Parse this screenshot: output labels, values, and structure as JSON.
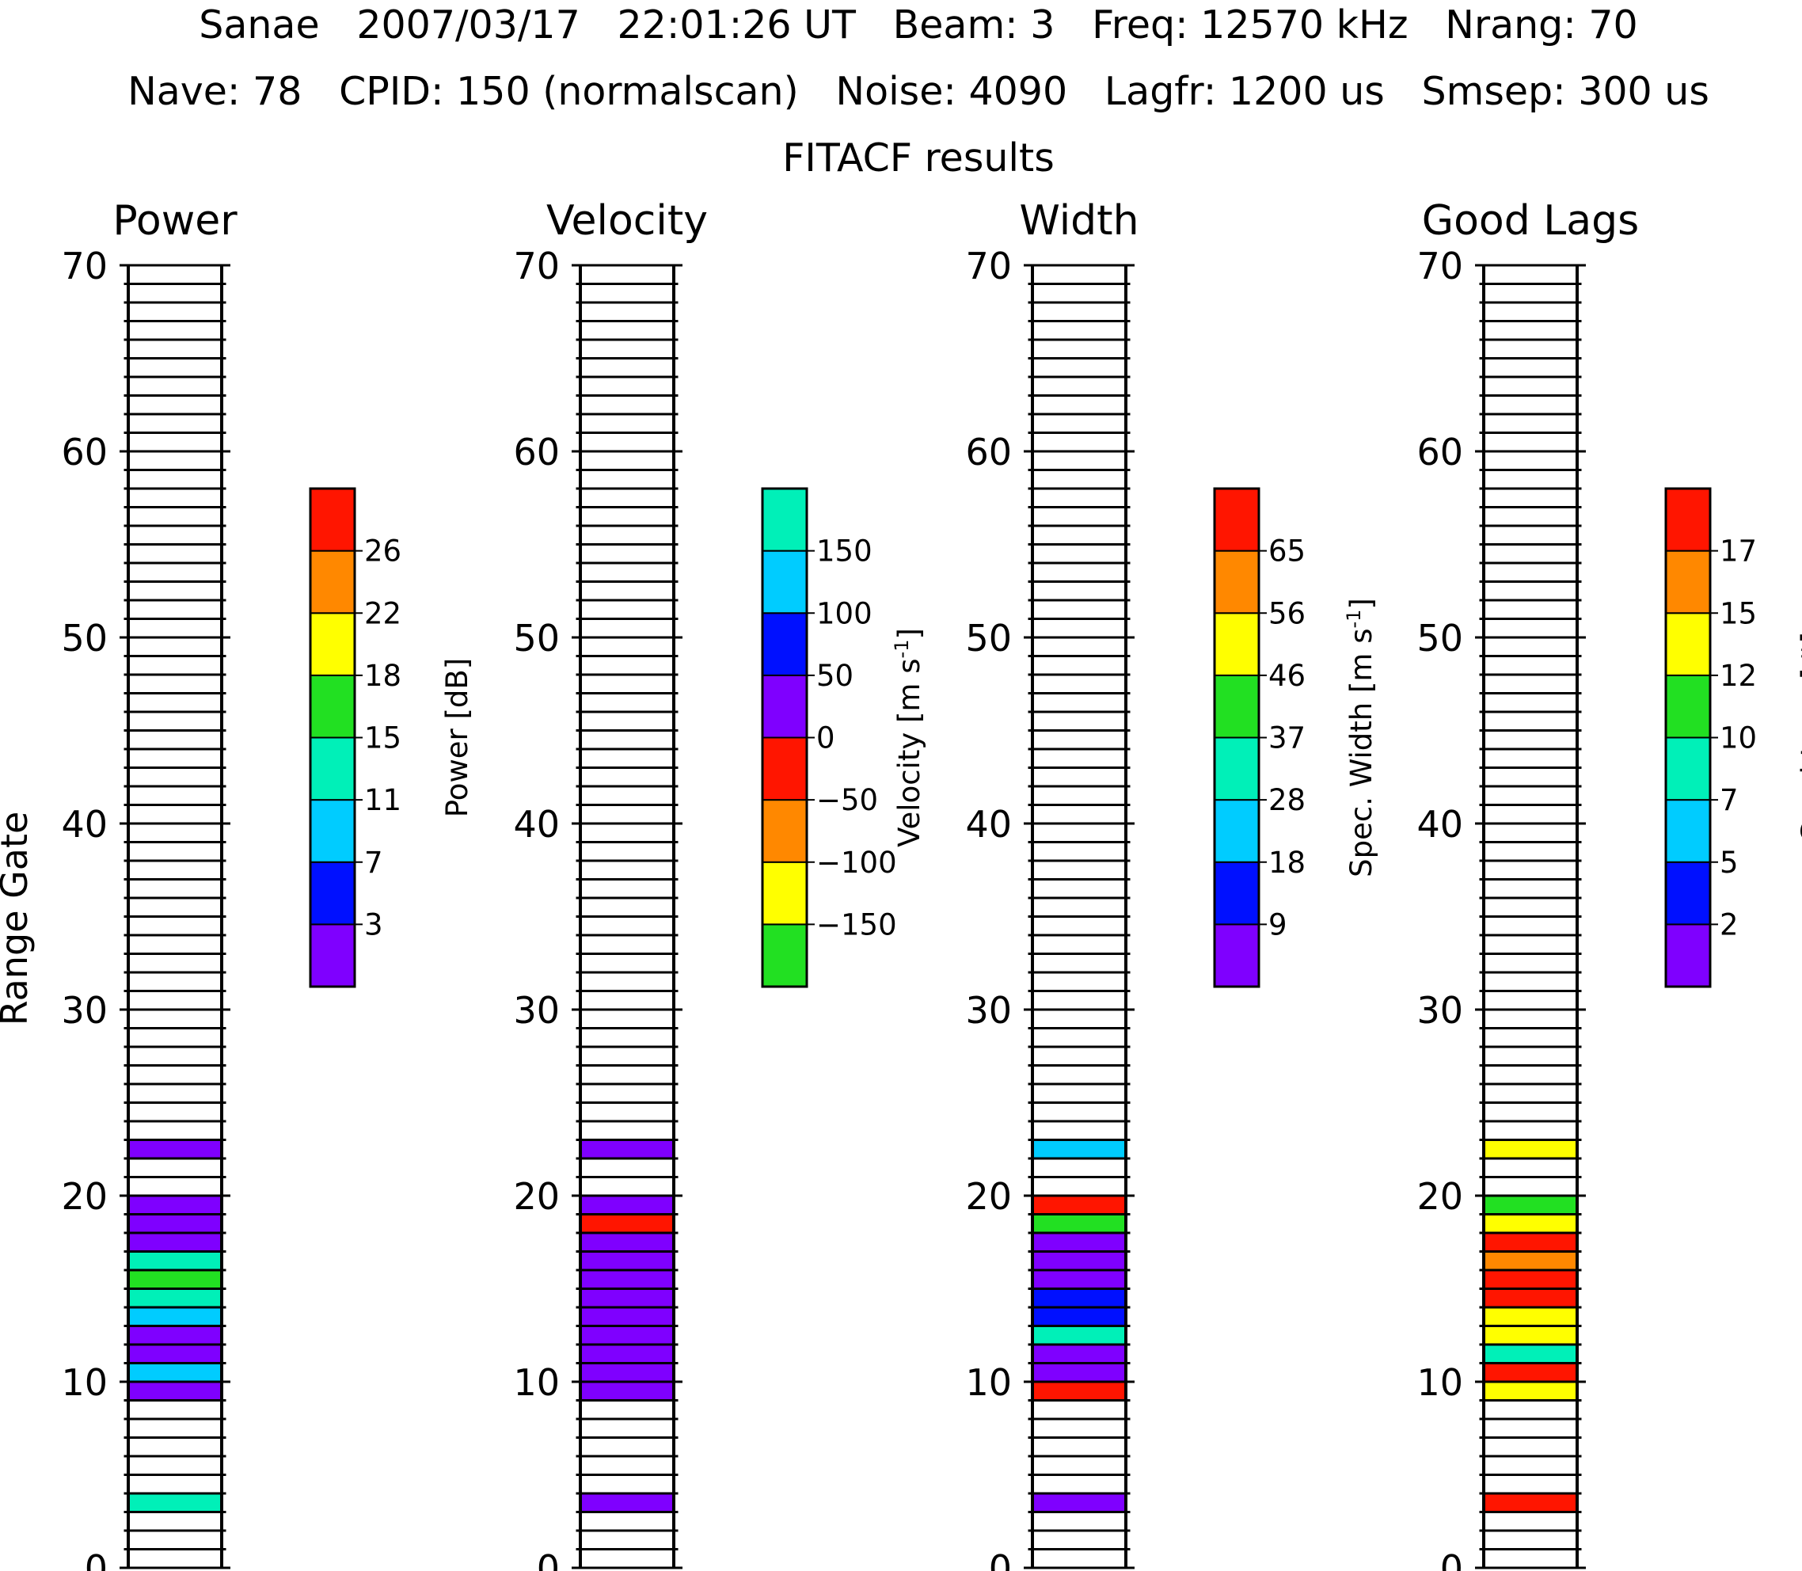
{
  "header": {
    "line1": "Sanae   2007/03/17   22:01:26 UT   Beam: 3   Freq: 12570 kHz   Nrang: 70",
    "line2": "Nave: 78   CPID: 150 (normalscan)   Noise: 4090   Lagfr: 1200 us   Smsep: 300 us",
    "line3": "FITACF results"
  },
  "y_axis_label": "Range Gate",
  "colors": {
    "purple": "#7f00ff",
    "blue": "#0010ff",
    "cyan": "#00ccff",
    "teal": "#00f0b8",
    "green": "#22e022",
    "yellow": "#ffff00",
    "orange": "#ff8800",
    "red": "#ff1500"
  },
  "chart_data": [
    {
      "type": "heatmap",
      "title": "Power",
      "ylabel": "Range Gate",
      "ylim": [
        0,
        70
      ],
      "yticks": [
        "0",
        "10",
        "20",
        "30",
        "40",
        "50",
        "60",
        "70"
      ],
      "colorbar": {
        "label": "Power [dB]",
        "colors": [
          "#7f00ff",
          "#0010ff",
          "#00ccff",
          "#00f0b8",
          "#22e022",
          "#ffff00",
          "#ff8800",
          "#ff1500"
        ],
        "ticks": [
          "3",
          "7",
          "11",
          "15",
          "18",
          "22",
          "26"
        ]
      },
      "cells": [
        {
          "gate": 3,
          "color": "#00f0b8"
        },
        {
          "gate": 9,
          "color": "#7f00ff"
        },
        {
          "gate": 10,
          "color": "#00ccff"
        },
        {
          "gate": 11,
          "color": "#7f00ff"
        },
        {
          "gate": 12,
          "color": "#7f00ff"
        },
        {
          "gate": 13,
          "color": "#00ccff"
        },
        {
          "gate": 14,
          "color": "#00f0b8"
        },
        {
          "gate": 15,
          "color": "#22e022"
        },
        {
          "gate": 16,
          "color": "#00f0b8"
        },
        {
          "gate": 17,
          "color": "#7f00ff"
        },
        {
          "gate": 18,
          "color": "#7f00ff"
        },
        {
          "gate": 19,
          "color": "#7f00ff"
        },
        {
          "gate": 22,
          "color": "#7f00ff"
        }
      ]
    },
    {
      "type": "heatmap",
      "title": "Velocity",
      "ylim": [
        0,
        70
      ],
      "yticks": [
        "0",
        "10",
        "20",
        "30",
        "40",
        "50",
        "60",
        "70"
      ],
      "colorbar": {
        "label": "Velocity [m s",
        "label_sup": "-1",
        "label_end": "]",
        "colors": [
          "#22e022",
          "#ffff00",
          "#ff8800",
          "#ff1500",
          "#7f00ff",
          "#0010ff",
          "#00ccff",
          "#00f0b8"
        ],
        "ticks": [
          "−150",
          "−100",
          "−50",
          "0",
          "50",
          "100",
          "150"
        ]
      },
      "cells": [
        {
          "gate": 3,
          "color": "#7f00ff"
        },
        {
          "gate": 9,
          "color": "#7f00ff"
        },
        {
          "gate": 10,
          "color": "#7f00ff"
        },
        {
          "gate": 11,
          "color": "#7f00ff"
        },
        {
          "gate": 12,
          "color": "#7f00ff"
        },
        {
          "gate": 13,
          "color": "#7f00ff"
        },
        {
          "gate": 14,
          "color": "#7f00ff"
        },
        {
          "gate": 15,
          "color": "#7f00ff"
        },
        {
          "gate": 16,
          "color": "#7f00ff"
        },
        {
          "gate": 17,
          "color": "#7f00ff"
        },
        {
          "gate": 18,
          "color": "#ff1500"
        },
        {
          "gate": 19,
          "color": "#7f00ff"
        },
        {
          "gate": 22,
          "color": "#7f00ff"
        }
      ]
    },
    {
      "type": "heatmap",
      "title": "Width",
      "ylim": [
        0,
        70
      ],
      "yticks": [
        "0",
        "10",
        "20",
        "30",
        "40",
        "50",
        "60",
        "70"
      ],
      "colorbar": {
        "label": "Spec. Width [m s",
        "label_sup": "-1",
        "label_end": "]",
        "colors": [
          "#7f00ff",
          "#0010ff",
          "#00ccff",
          "#00f0b8",
          "#22e022",
          "#ffff00",
          "#ff8800",
          "#ff1500"
        ],
        "ticks": [
          "9",
          "18",
          "28",
          "37",
          "46",
          "56",
          "65"
        ]
      },
      "cells": [
        {
          "gate": 3,
          "color": "#7f00ff"
        },
        {
          "gate": 9,
          "color": "#ff1500"
        },
        {
          "gate": 10,
          "color": "#7f00ff"
        },
        {
          "gate": 11,
          "color": "#7f00ff"
        },
        {
          "gate": 12,
          "color": "#00f0b8"
        },
        {
          "gate": 13,
          "color": "#0010ff"
        },
        {
          "gate": 14,
          "color": "#0010ff"
        },
        {
          "gate": 15,
          "color": "#7f00ff"
        },
        {
          "gate": 16,
          "color": "#7f00ff"
        },
        {
          "gate": 17,
          "color": "#7f00ff"
        },
        {
          "gate": 18,
          "color": "#22e022"
        },
        {
          "gate": 19,
          "color": "#ff1500"
        },
        {
          "gate": 22,
          "color": "#00ccff"
        }
      ]
    },
    {
      "type": "heatmap",
      "title": "Good Lags",
      "ylim": [
        0,
        70
      ],
      "yticks": [
        "0",
        "10",
        "20",
        "30",
        "40",
        "50",
        "60",
        "70"
      ],
      "colorbar": {
        "label": "Good Lags [#]",
        "colors": [
          "#7f00ff",
          "#0010ff",
          "#00ccff",
          "#00f0b8",
          "#22e022",
          "#ffff00",
          "#ff8800",
          "#ff1500"
        ],
        "ticks": [
          "2",
          "5",
          "7",
          "10",
          "12",
          "15",
          "17"
        ]
      },
      "cells": [
        {
          "gate": 3,
          "color": "#ff1500"
        },
        {
          "gate": 9,
          "color": "#ffff00"
        },
        {
          "gate": 10,
          "color": "#ff1500"
        },
        {
          "gate": 11,
          "color": "#00f0b8"
        },
        {
          "gate": 12,
          "color": "#ffff00"
        },
        {
          "gate": 13,
          "color": "#ffff00"
        },
        {
          "gate": 14,
          "color": "#ff1500"
        },
        {
          "gate": 15,
          "color": "#ff1500"
        },
        {
          "gate": 16,
          "color": "#ff8800"
        },
        {
          "gate": 17,
          "color": "#ff1500"
        },
        {
          "gate": 18,
          "color": "#ffff00"
        },
        {
          "gate": 19,
          "color": "#22e022"
        },
        {
          "gate": 22,
          "color": "#ffff00"
        }
      ]
    }
  ]
}
